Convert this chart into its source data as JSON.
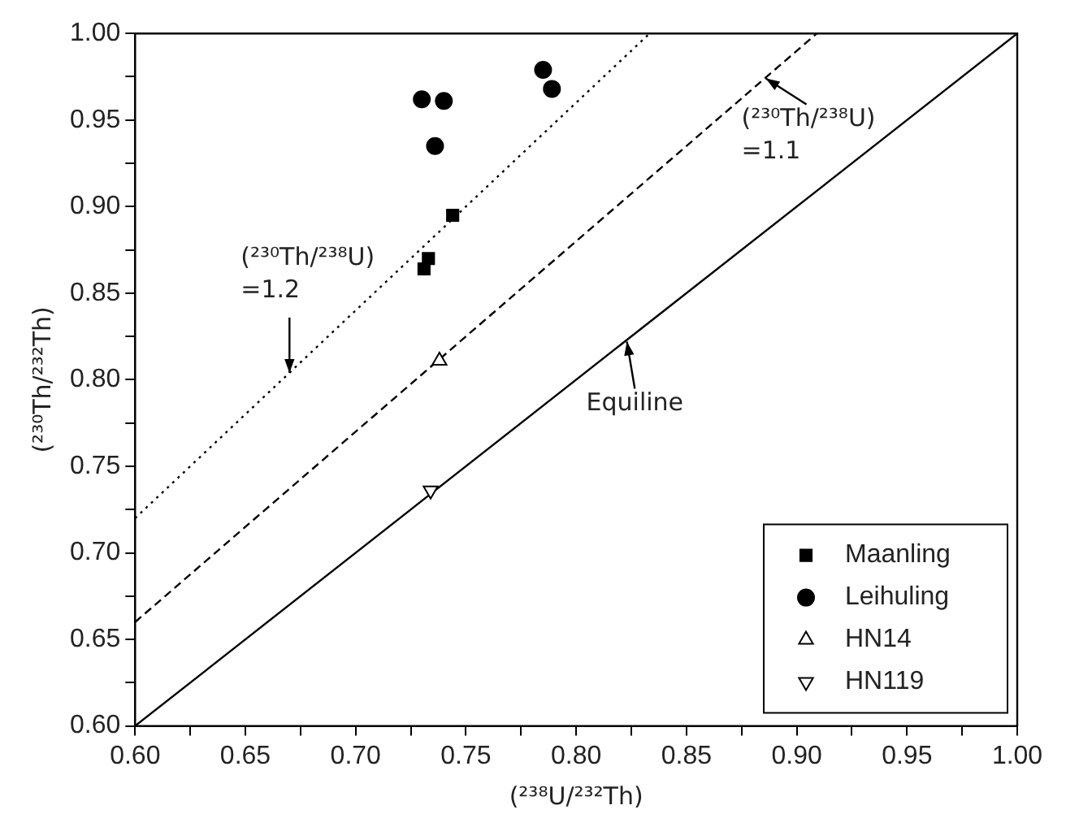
{
  "chart_data": {
    "type": "scatter",
    "xlabel": "(²³⁸U/²³²Th)",
    "ylabel": "(²³⁰Th/²³²Th)",
    "xlim": [
      0.6,
      1.0
    ],
    "ylim": [
      0.6,
      1.0
    ],
    "xticks": [
      {
        "value": 0.6,
        "label": "0.60"
      },
      {
        "value": 0.625,
        "label": null
      },
      0.65,
      {
        "value": 0.675,
        "label": null
      },
      {
        "value": 0.7,
        "label": "0.70"
      },
      {
        "value": 0.725,
        "label": null
      },
      0.75,
      {
        "value": 0.775,
        "label": null
      },
      {
        "value": 0.8,
        "label": "0.80"
      },
      {
        "value": 0.825,
        "label": null
      },
      0.85,
      {
        "value": 0.875,
        "label": null
      },
      {
        "value": 0.9,
        "label": "0.90"
      },
      {
        "value": 0.925,
        "label": null
      },
      0.95,
      {
        "value": 0.975,
        "label": null
      },
      {
        "value": 1.0,
        "label": "1.00"
      }
    ],
    "yticks": [
      {
        "value": 0.6,
        "label": "0.60"
      },
      {
        "value": 0.625,
        "label": null
      },
      0.65,
      {
        "value": 0.675,
        "label": null
      },
      {
        "value": 0.7,
        "label": "0.70"
      },
      {
        "value": 0.725,
        "label": null
      },
      0.75,
      {
        "value": 0.775,
        "label": null
      },
      {
        "value": 0.8,
        "label": "0.80"
      },
      {
        "value": 0.825,
        "label": null
      },
      0.85,
      {
        "value": 0.875,
        "label": null
      },
      {
        "value": 0.9,
        "label": "0.90"
      },
      {
        "value": 0.925,
        "label": null
      },
      0.95,
      {
        "value": 0.975,
        "label": null
      },
      {
        "value": 1.0,
        "label": "1.00"
      }
    ],
    "grid": false,
    "legend": "bottom right",
    "series": [
      {
        "name": "Maanling",
        "color": "#000000",
        "marker": "square",
        "x": [
          0.744,
          0.733,
          0.731
        ],
        "values": [
          0.895,
          0.87,
          0.864
        ]
      },
      {
        "name": "Leihuling",
        "color": "#000000",
        "marker": "circle",
        "x": [
          0.73,
          0.74,
          0.736,
          0.785,
          0.789
        ],
        "values": [
          0.962,
          0.961,
          0.935,
          0.979,
          0.968
        ]
      },
      {
        "name": "HN14",
        "color": "#000000",
        "marker": "triangle",
        "x": [
          0.738
        ],
        "values": [
          0.811
        ]
      },
      {
        "name": "HN119",
        "color": "#000000",
        "marker": "triangle-down",
        "x": [
          0.734
        ],
        "values": [
          0.736
        ]
      },
      {
        "type": "line",
        "color": "#000000",
        "line_style": "dotted",
        "marker": "none",
        "x": [
          0.6,
          0.8333
        ],
        "values": [
          0.72,
          1.0
        ]
      },
      {
        "type": "line",
        "color": "#000000",
        "line_style": "dashed",
        "marker": "none",
        "x": [
          0.6,
          0.9091
        ],
        "values": [
          0.66,
          1.0
        ]
      },
      {
        "type": "line",
        "color": "#000000",
        "line_style": "solid",
        "marker": "none",
        "x": [
          0.6,
          1.0
        ],
        "values": [
          0.6,
          1.0
        ]
      }
    ],
    "annotations": [
      {
        "text": "(²³⁰Th/²³⁸U)\n=1.2",
        "x": 0.67,
        "y": 0.804
      },
      {
        "text": "(²³⁰Th/²³⁸U)\n=1.1",
        "x": 0.886,
        "y": 0.974
      },
      {
        "text": "Equiline",
        "x": 0.823,
        "y": 0.822
      }
    ]
  }
}
